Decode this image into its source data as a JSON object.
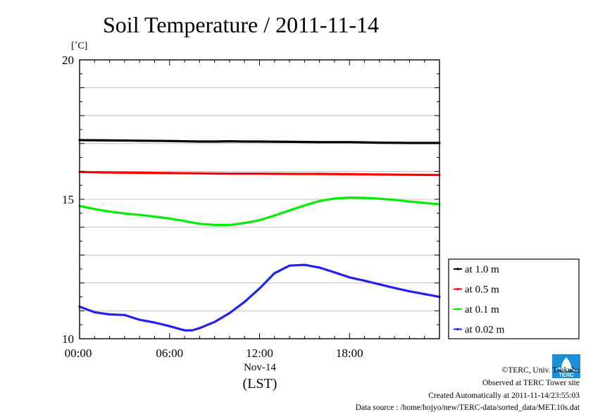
{
  "chart_data": {
    "type": "line",
    "title": "Soil Temperature / 2011-11-14",
    "ylabel": "[˚C]",
    "ylim": [
      10,
      20
    ],
    "yticks": [
      10,
      15,
      20
    ],
    "ytick_labels": [
      "10",
      "15",
      "20"
    ],
    "xlim": [
      0,
      24
    ],
    "xticks": [
      0,
      6,
      12,
      18
    ],
    "xtick_labels": [
      "00:00",
      "06:00",
      "12:00",
      "18:00"
    ],
    "date_label": "Nov-14",
    "xlabel": "(LST)",
    "grid": "horizontal",
    "legend_placement": "right",
    "series": [
      {
        "name": "at 1.0 m",
        "color": "#000000",
        "x": [
          0,
          2,
          4,
          6,
          8,
          9,
          10,
          11,
          12,
          14,
          16,
          18,
          20,
          22,
          24
        ],
        "values": [
          17.12,
          17.11,
          17.1,
          17.09,
          17.07,
          17.07,
          17.08,
          17.07,
          17.07,
          17.06,
          17.05,
          17.05,
          17.03,
          17.02,
          17.02
        ]
      },
      {
        "name": "at 0.5 m",
        "color": "#ff0000",
        "x": [
          0,
          2,
          4,
          6,
          8,
          10,
          12,
          14,
          16,
          18,
          20,
          22,
          24
        ],
        "values": [
          15.98,
          15.96,
          15.95,
          15.94,
          15.93,
          15.92,
          15.92,
          15.91,
          15.91,
          15.9,
          15.89,
          15.88,
          15.87
        ]
      },
      {
        "name": "at 0.1 m",
        "color": "#00ee00",
        "x": [
          0,
          1,
          2,
          3,
          4,
          5,
          6,
          7,
          8,
          9,
          10,
          11,
          12,
          13,
          14,
          15,
          16,
          17,
          18,
          19,
          20,
          21,
          22,
          23,
          24
        ],
        "values": [
          14.76,
          14.65,
          14.56,
          14.49,
          14.44,
          14.38,
          14.31,
          14.22,
          14.12,
          14.08,
          14.08,
          14.15,
          14.25,
          14.42,
          14.6,
          14.78,
          14.94,
          15.03,
          15.06,
          15.05,
          15.02,
          14.98,
          14.92,
          14.87,
          14.82
        ]
      },
      {
        "name": "at 0.02 m",
        "color": "#2222ee",
        "x": [
          0,
          1,
          2,
          3,
          4,
          5,
          6,
          7,
          7.5,
          8,
          9,
          10,
          11,
          12,
          13,
          14,
          15,
          16,
          17,
          18,
          19,
          20,
          21,
          22,
          23,
          24
        ],
        "values": [
          11.15,
          10.95,
          10.87,
          10.85,
          10.68,
          10.58,
          10.45,
          10.3,
          10.3,
          10.38,
          10.6,
          10.92,
          11.32,
          11.8,
          12.35,
          12.62,
          12.65,
          12.55,
          12.38,
          12.2,
          12.08,
          11.95,
          11.82,
          11.7,
          11.6,
          11.5
        ]
      }
    ]
  },
  "credits": {
    "copyright": "©TERC, Univ. Tsukuba",
    "site": "Observed at TERC Tower site",
    "created": "Created Automatically at 2011-11-14/23:55:03",
    "source": "Data source : /home/hojyo/new/TERC-data/sorted_data/MET.10s.dat"
  },
  "logo": {
    "text": "TERC",
    "color": "#1a8fd8"
  }
}
